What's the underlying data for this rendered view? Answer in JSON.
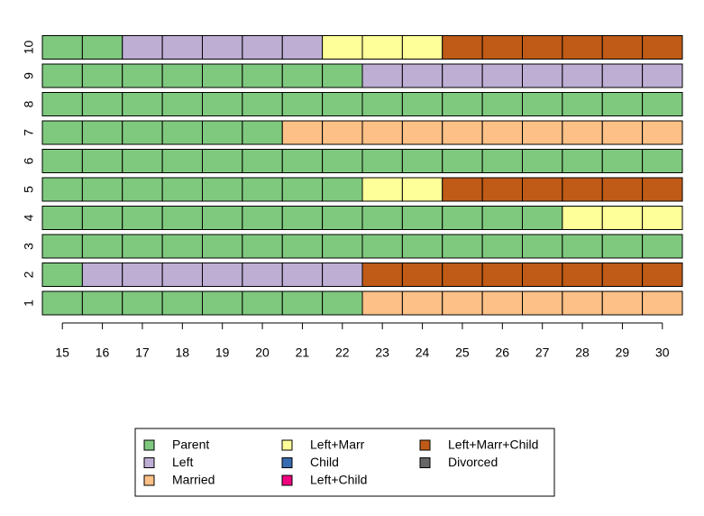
{
  "chart_data": {
    "type": "sequence_index",
    "x": [
      15,
      16,
      17,
      18,
      19,
      20,
      21,
      22,
      23,
      24,
      25,
      26,
      27,
      28,
      29,
      30
    ],
    "states": [
      {
        "name": "Parent",
        "color": "#7fc97f"
      },
      {
        "name": "Left",
        "color": "#beaed4"
      },
      {
        "name": "Married",
        "color": "#fdc086"
      },
      {
        "name": "Left+Marr",
        "color": "#ffff99"
      },
      {
        "name": "Child",
        "color": "#386cb0"
      },
      {
        "name": "Left+Child",
        "color": "#f0027f"
      },
      {
        "name": "Left+Marr+Child",
        "color": "#bf5b17"
      },
      {
        "name": "Divorced",
        "color": "#666666"
      }
    ],
    "sequences": [
      {
        "name": "1",
        "values": [
          "Parent",
          "Parent",
          "Parent",
          "Parent",
          "Parent",
          "Parent",
          "Parent",
          "Parent",
          "Married",
          "Married",
          "Married",
          "Married",
          "Married",
          "Married",
          "Married",
          "Married"
        ]
      },
      {
        "name": "2",
        "values": [
          "Parent",
          "Left",
          "Left",
          "Left",
          "Left",
          "Left",
          "Left",
          "Left",
          "Left+Marr+Child",
          "Left+Marr+Child",
          "Left+Marr+Child",
          "Left+Marr+Child",
          "Left+Marr+Child",
          "Left+Marr+Child",
          "Left+Marr+Child",
          "Left+Marr+Child"
        ]
      },
      {
        "name": "3",
        "values": [
          "Parent",
          "Parent",
          "Parent",
          "Parent",
          "Parent",
          "Parent",
          "Parent",
          "Parent",
          "Parent",
          "Parent",
          "Parent",
          "Parent",
          "Parent",
          "Parent",
          "Parent",
          "Parent"
        ]
      },
      {
        "name": "4",
        "values": [
          "Parent",
          "Parent",
          "Parent",
          "Parent",
          "Parent",
          "Parent",
          "Parent",
          "Parent",
          "Parent",
          "Parent",
          "Parent",
          "Parent",
          "Parent",
          "Left+Marr",
          "Left+Marr",
          "Left+Marr"
        ]
      },
      {
        "name": "5",
        "values": [
          "Parent",
          "Parent",
          "Parent",
          "Parent",
          "Parent",
          "Parent",
          "Parent",
          "Parent",
          "Left+Marr",
          "Left+Marr",
          "Left+Marr+Child",
          "Left+Marr+Child",
          "Left+Marr+Child",
          "Left+Marr+Child",
          "Left+Marr+Child",
          "Left+Marr+Child"
        ]
      },
      {
        "name": "6",
        "values": [
          "Parent",
          "Parent",
          "Parent",
          "Parent",
          "Parent",
          "Parent",
          "Parent",
          "Parent",
          "Parent",
          "Parent",
          "Parent",
          "Parent",
          "Parent",
          "Parent",
          "Parent",
          "Parent"
        ]
      },
      {
        "name": "7",
        "values": [
          "Parent",
          "Parent",
          "Parent",
          "Parent",
          "Parent",
          "Parent",
          "Married",
          "Married",
          "Married",
          "Married",
          "Married",
          "Married",
          "Married",
          "Married",
          "Married",
          "Married"
        ]
      },
      {
        "name": "8",
        "values": [
          "Parent",
          "Parent",
          "Parent",
          "Parent",
          "Parent",
          "Parent",
          "Parent",
          "Parent",
          "Parent",
          "Parent",
          "Parent",
          "Parent",
          "Parent",
          "Parent",
          "Parent",
          "Parent"
        ]
      },
      {
        "name": "9",
        "values": [
          "Parent",
          "Parent",
          "Parent",
          "Parent",
          "Parent",
          "Parent",
          "Parent",
          "Parent",
          "Left",
          "Left",
          "Left",
          "Left",
          "Left",
          "Left",
          "Left",
          "Left"
        ]
      },
      {
        "name": "10",
        "values": [
          "Parent",
          "Parent",
          "Left",
          "Left",
          "Left",
          "Left",
          "Left",
          "Left+Marr",
          "Left+Marr",
          "Left+Marr",
          "Left+Marr+Child",
          "Left+Marr+Child",
          "Left+Marr+Child",
          "Left+Marr+Child",
          "Left+Marr+Child",
          "Left+Marr+Child"
        ]
      }
    ]
  }
}
